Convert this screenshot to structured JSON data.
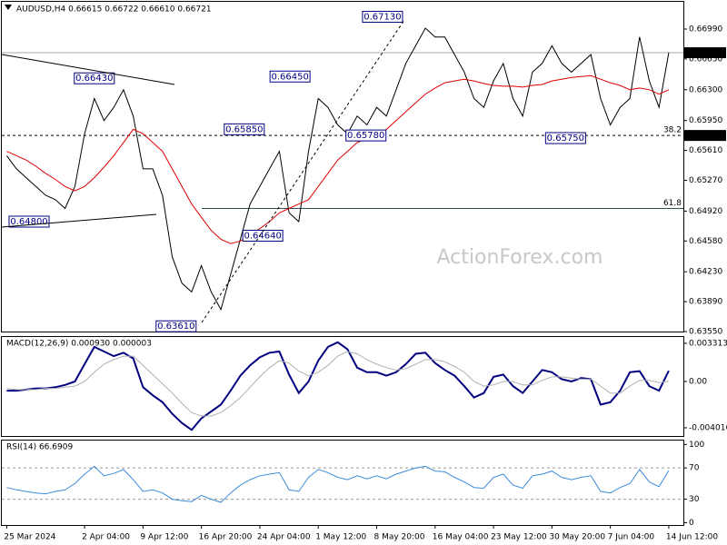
{
  "chart_data": [
    {
      "type": "line",
      "title": "AUDUSD,H4  0.66615 0.66722 0.66610 0.66721",
      "watermark": "ActionForex.com",
      "xlim": [
        -0.5,
        69.5
      ],
      "ylim": [
        0.6355,
        0.673
      ],
      "yticks": [
        {
          "value": 0.6699,
          "label": "0.66990"
        },
        {
          "value": 0.6665,
          "label": "0.66650"
        },
        {
          "value": 0.663,
          "label": "0.66300"
        },
        {
          "value": 0.6595,
          "label": "0.65950"
        },
        {
          "value": 0.6561,
          "label": "0.65610"
        },
        {
          "value": 0.6527,
          "label": "0.65270"
        },
        {
          "value": 0.6492,
          "label": "0.64920"
        },
        {
          "value": 0.6458,
          "label": "0.64580"
        },
        {
          "value": 0.6423,
          "label": "0.64230"
        },
        {
          "value": 0.6389,
          "label": "0.63890"
        },
        {
          "value": 0.6355,
          "label": "0.63550"
        }
      ],
      "x": [
        0,
        1,
        2,
        3,
        4,
        5,
        6,
        7,
        8,
        9,
        10,
        11,
        12,
        13,
        14,
        15,
        16,
        17,
        18,
        19,
        20,
        21,
        22,
        23,
        24,
        25,
        26,
        27,
        28,
        29,
        30,
        31,
        32,
        33,
        34,
        35,
        36,
        37,
        38,
        39,
        40,
        41,
        42,
        43,
        44,
        45,
        46,
        47,
        48,
        49,
        50,
        51,
        52,
        53,
        54,
        55,
        56,
        57,
        58,
        59,
        60,
        61,
        62,
        63,
        64,
        65,
        66,
        67,
        68
      ],
      "series": [
        {
          "name": "Price",
          "color": "#000000",
          "values": [
            0.6555,
            0.654,
            0.653,
            0.652,
            0.651,
            0.6505,
            0.6495,
            0.652,
            0.658,
            0.662,
            0.6595,
            0.661,
            0.663,
            0.66,
            0.654,
            0.654,
            0.651,
            0.644,
            0.641,
            0.64,
            0.643,
            0.64,
            0.638,
            0.642,
            0.646,
            0.65,
            0.652,
            0.654,
            0.656,
            0.649,
            0.648,
            0.656,
            0.662,
            0.661,
            0.659,
            0.658,
            0.66,
            0.659,
            0.661,
            0.66,
            0.663,
            0.666,
            0.668,
            0.67,
            0.669,
            0.669,
            0.667,
            0.665,
            0.662,
            0.661,
            0.664,
            0.666,
            0.662,
            0.66,
            0.665,
            0.666,
            0.668,
            0.666,
            0.665,
            0.666,
            0.667,
            0.662,
            0.659,
            0.661,
            0.662,
            0.669,
            0.664,
            0.661,
            0.66721
          ]
        },
        {
          "name": "MA",
          "color": "#e00000",
          "values": [
            0.656,
            0.6555,
            0.655,
            0.6543,
            0.6535,
            0.6528,
            0.652,
            0.6515,
            0.652,
            0.653,
            0.6542,
            0.6555,
            0.657,
            0.6585,
            0.658,
            0.657,
            0.656,
            0.654,
            0.652,
            0.65,
            0.6485,
            0.647,
            0.646,
            0.6455,
            0.6458,
            0.6465,
            0.6472,
            0.648,
            0.649,
            0.6495,
            0.65,
            0.6505,
            0.652,
            0.6535,
            0.655,
            0.656,
            0.657,
            0.6575,
            0.658,
            0.6585,
            0.6595,
            0.6605,
            0.6615,
            0.6625,
            0.6632,
            0.6638,
            0.664,
            0.6642,
            0.664,
            0.6637,
            0.6635,
            0.6634,
            0.6634,
            0.6633,
            0.6635,
            0.6636,
            0.664,
            0.6642,
            0.6644,
            0.6645,
            0.6646,
            0.6642,
            0.6638,
            0.6635,
            0.663,
            0.6632,
            0.663,
            0.6625,
            0.663
          ]
        }
      ],
      "annotations": [
        {
          "label": "0.66430",
          "x": 9,
          "y": 0.6643
        },
        {
          "label": "0.66450",
          "x": 29.1,
          "y": 0.6645
        },
        {
          "label": "0.67130",
          "x": 38.6,
          "y": 0.6713
        },
        {
          "label": "0.65850",
          "x": 24.4,
          "y": 0.6585
        },
        {
          "label": "0.65780",
          "x": 36.9,
          "y": 0.6578
        },
        {
          "label": "0.65750",
          "x": 57.4,
          "y": 0.6575
        },
        {
          "label": "0.64800",
          "x": 2.3,
          "y": 0.648
        },
        {
          "label": "0.64640",
          "x": 26.3,
          "y": 0.6464
        },
        {
          "label": "0.63610",
          "x": 17.4,
          "y": 0.6361
        }
      ],
      "price_lines": [
        {
          "value": 0.66721,
          "label": "0.66721"
        },
        {
          "value": 0.6578,
          "label": "0.65780"
        }
      ],
      "fib_levels": [
        {
          "value": 0.6578,
          "name": "38.2"
        },
        {
          "value": 0.6495,
          "name": "61.8"
        }
      ]
    },
    {
      "type": "line",
      "title": "MACD(12,26,9) 0.000930 0.000003",
      "xlim": [
        -0.5,
        69.5
      ],
      "ylim": [
        -0.00473,
        0.00386
      ],
      "yticks": [
        0.003313,
        {
          "value": 0,
          "label": "0.00"
        },
        -0.004016
      ],
      "x": [
        0,
        1,
        2,
        3,
        4,
        5,
        6,
        7,
        8,
        9,
        10,
        11,
        12,
        13,
        14,
        15,
        16,
        17,
        18,
        19,
        20,
        21,
        22,
        23,
        24,
        25,
        26,
        27,
        28,
        29,
        30,
        31,
        32,
        33,
        34,
        35,
        36,
        37,
        38,
        39,
        40,
        41,
        42,
        43,
        44,
        45,
        46,
        47,
        48,
        49,
        50,
        51,
        52,
        53,
        54,
        55,
        56,
        57,
        58,
        59,
        60,
        61,
        62,
        63,
        64,
        65,
        66,
        67,
        68
      ],
      "series": [
        {
          "name": "MACD",
          "color": "#000080",
          "values": [
            -0.0008,
            -0.0008,
            -0.0007,
            -0.0006,
            -0.0006,
            -0.0005,
            -0.0003,
            0.0,
            0.0015,
            0.003,
            0.0026,
            0.0022,
            0.0025,
            0.002,
            -0.0005,
            -0.0012,
            -0.0018,
            -0.0028,
            -0.0036,
            -0.0042,
            -0.0032,
            -0.0026,
            -0.002,
            -0.0008,
            0.0005,
            0.0014,
            0.0021,
            0.0025,
            0.0026,
            0.0006,
            -0.001,
            0.0,
            0.0018,
            0.003,
            0.0034,
            0.0028,
            0.0012,
            0.0008,
            0.0008,
            0.0005,
            0.0008,
            0.0015,
            0.0024,
            0.0025,
            0.0016,
            0.001,
            0.0005,
            -0.0004,
            -0.0014,
            -0.001,
            0.0004,
            0.0006,
            -0.0004,
            -0.001,
            0.0,
            0.001,
            0.0008,
            0.0002,
            0.0,
            0.0003,
            0.0002,
            -0.002,
            -0.0018,
            -0.0008,
            0.0008,
            0.0009,
            -0.0004,
            -0.0008,
            0.00093
          ]
        },
        {
          "name": "Signal",
          "color": "#b0b0b0",
          "values": [
            -0.0006,
            -0.0007,
            -0.0007,
            -0.0007,
            -0.0006,
            -0.0006,
            -0.0005,
            -0.0004,
            0.0,
            0.0008,
            0.0015,
            0.0019,
            0.0022,
            0.0022,
            0.0014,
            0.0006,
            -0.0002,
            -0.001,
            -0.0019,
            -0.0027,
            -0.003,
            -0.003,
            -0.0027,
            -0.0021,
            -0.0014,
            -0.0005,
            0.0004,
            0.0012,
            0.0018,
            0.0016,
            0.0009,
            0.0005,
            0.0008,
            0.0014,
            0.0022,
            0.0026,
            0.0024,
            0.0019,
            0.0015,
            0.0012,
            0.001,
            0.0011,
            0.0015,
            0.0019,
            0.0019,
            0.0017,
            0.0013,
            0.0008,
            0.0,
            -0.0004,
            -0.0003,
            0.0,
            0.0,
            -0.0003,
            -0.0003,
            0.0001,
            0.0004,
            0.0004,
            0.0003,
            0.0002,
            0.0002,
            -0.0004,
            -0.001,
            -0.001,
            -0.0004,
            0.0001,
            0.0001,
            -0.0001,
            3e-06
          ]
        }
      ]
    },
    {
      "type": "line",
      "title": "RSI(14) 66.6909",
      "xlim": [
        -0.5,
        69.5
      ],
      "ylim": [
        -3,
        105
      ],
      "yticks": [
        100,
        70,
        30,
        0
      ],
      "levels": [
        70,
        30
      ],
      "x": [
        0,
        1,
        2,
        3,
        4,
        5,
        6,
        7,
        8,
        9,
        10,
        11,
        12,
        13,
        14,
        15,
        16,
        17,
        18,
        19,
        20,
        21,
        22,
        23,
        24,
        25,
        26,
        27,
        28,
        29,
        30,
        31,
        32,
        33,
        34,
        35,
        36,
        37,
        38,
        39,
        40,
        41,
        42,
        43,
        44,
        45,
        46,
        47,
        48,
        49,
        50,
        51,
        52,
        53,
        54,
        55,
        56,
        57,
        58,
        59,
        60,
        61,
        62,
        63,
        64,
        65,
        66,
        67,
        68
      ],
      "series": [
        {
          "name": "RSI",
          "color": "#3c8cdc",
          "values": [
            45,
            42,
            40,
            38,
            37,
            40,
            42,
            50,
            62,
            72,
            60,
            63,
            68,
            55,
            40,
            42,
            38,
            30,
            28,
            27,
            35,
            30,
            26,
            38,
            48,
            55,
            60,
            62,
            64,
            42,
            40,
            58,
            68,
            64,
            58,
            55,
            60,
            56,
            60,
            56,
            62,
            66,
            70,
            72,
            66,
            65,
            58,
            52,
            45,
            44,
            58,
            62,
            48,
            44,
            60,
            62,
            66,
            58,
            55,
            58,
            60,
            40,
            38,
            45,
            50,
            68,
            52,
            46,
            66.6909
          ]
        }
      ],
      "xticks": [
        {
          "value": 0,
          "label": "25 Mar 2024"
        },
        {
          "value": 8,
          "label": "2 Apr 04:00"
        },
        {
          "value": 14,
          "label": "9 Apr 12:00"
        },
        {
          "value": 20,
          "label": "16 Apr 20:00"
        },
        {
          "value": 26,
          "label": "24 Apr 04:00"
        },
        {
          "value": 32,
          "label": "1 May 12:00"
        },
        {
          "value": 38,
          "label": "8 May 20:00"
        },
        {
          "value": 44,
          "label": "16 May 04:00"
        },
        {
          "value": 50,
          "label": "23 May 12:00"
        },
        {
          "value": 56,
          "label": "30 May 20:00"
        },
        {
          "value": 62,
          "label": "7 Jun 04:00"
        },
        {
          "value": 68,
          "label": "14 Jun 12:00"
        }
      ]
    }
  ]
}
